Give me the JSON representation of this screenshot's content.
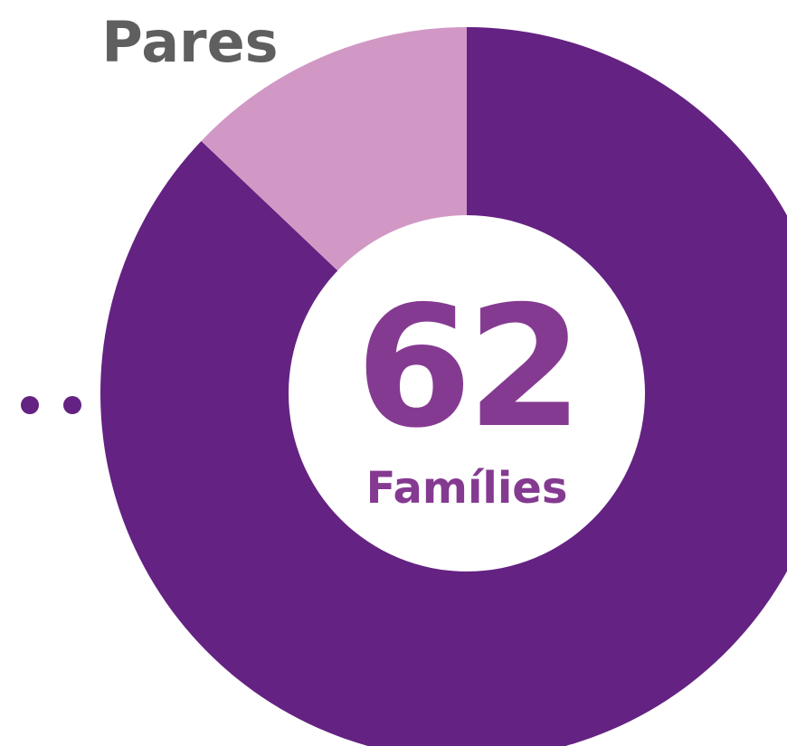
{
  "chart_data": {
    "type": "donut",
    "categories": [
      null,
      "Pares"
    ],
    "values": [
      54,
      8
    ],
    "colors": [
      "#642282",
      "#d198c5"
    ],
    "center_value": 62,
    "center_label": "Famílies"
  }
}
